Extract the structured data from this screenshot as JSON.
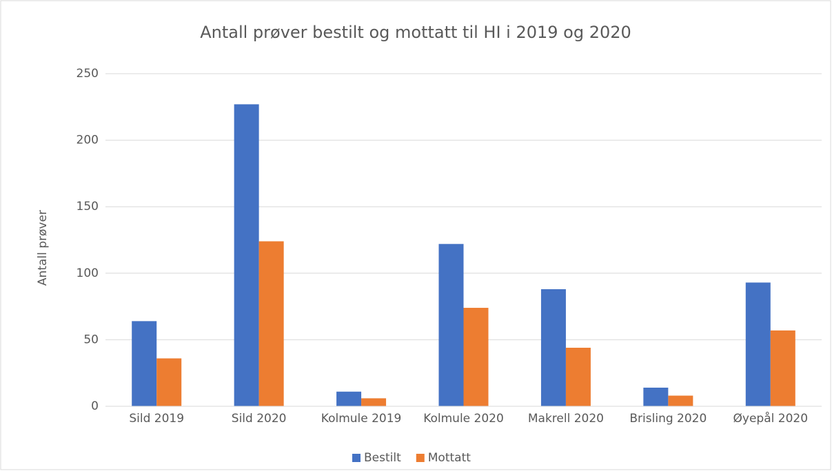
{
  "chart_data": {
    "type": "bar",
    "title": "Antall prøver bestilt og mottatt til HI i 2019 og 2020",
    "y_label": "Antall prøver",
    "categories": [
      "Sild 2019",
      "Sild 2020",
      "Kolmule 2019",
      "Kolmule 2020",
      "Makrell 2020",
      "Brisling 2020",
      "Øyepål 2020"
    ],
    "series": [
      {
        "name": "Bestilt",
        "color": "#4472c4",
        "values": [
          64,
          227,
          11,
          122,
          88,
          14,
          93
        ]
      },
      {
        "name": "Mottatt",
        "color": "#ed7d31",
        "values": [
          36,
          124,
          6,
          74,
          44,
          8,
          57
        ]
      }
    ],
    "ylim": [
      0,
      250
    ],
    "yticks": [
      0,
      50,
      100,
      150,
      200,
      250
    ],
    "grid": true,
    "legend": "bottom"
  }
}
